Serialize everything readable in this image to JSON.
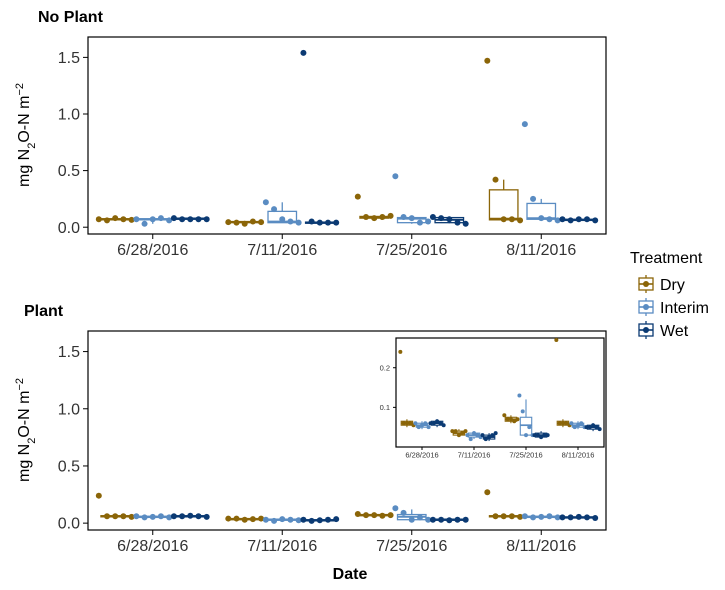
{
  "figure": {
    "xlabel": "Date",
    "ylabel": "mg N2O-N m−2",
    "ylabel_main": "mg N",
    "ylabel_sub": "2",
    "ylabel_rest": "O-N m",
    "ylabel_sup": "−2"
  },
  "legend": {
    "title": "Treatment",
    "items": [
      {
        "label": "Dry",
        "color": "#8B6508"
      },
      {
        "label": "Interim",
        "color": "#5A8CC2"
      },
      {
        "label": "Wet",
        "color": "#0B3A73"
      }
    ]
  },
  "colors": {
    "Dry": "#8B6508",
    "Interim": "#5A8CC2",
    "Wet": "#0B3A73"
  },
  "chart_data": [
    {
      "type": "box",
      "title": "No Plant",
      "categories": [
        "6/28/2016",
        "7/11/2016",
        "7/25/2016",
        "8/11/2016"
      ],
      "xlabel": "",
      "ylabel": "mg N2O-N m-2",
      "ylim": [
        -0.06,
        1.68
      ],
      "yticks": [
        0.0,
        0.5,
        1.0,
        1.5
      ],
      "series": [
        {
          "name": "Dry",
          "boxes": [
            {
              "q1": 0.065,
              "median": 0.07,
              "q3": 0.075,
              "whisker_low": 0.06,
              "whisker_high": 0.085,
              "points": [
                0.07,
                0.06,
                0.08,
                0.07,
                0.065
              ]
            },
            {
              "q1": 0.04,
              "median": 0.045,
              "q3": 0.05,
              "whisker_low": 0.035,
              "whisker_high": 0.055,
              "points": [
                0.045,
                0.04,
                0.03,
                0.05,
                0.045
              ]
            },
            {
              "q1": 0.08,
              "median": 0.09,
              "q3": 0.095,
              "whisker_low": 0.075,
              "whisker_high": 0.1,
              "points": [
                0.27,
                0.09,
                0.08,
                0.09,
                0.1
              ]
            },
            {
              "q1": 0.065,
              "median": 0.075,
              "q3": 0.33,
              "whisker_low": 0.06,
              "whisker_high": 0.42,
              "points": [
                1.47,
                0.42,
                0.07,
                0.07,
                0.06
              ]
            }
          ]
        },
        {
          "name": "Interim",
          "boxes": [
            {
              "q1": 0.065,
              "median": 0.07,
              "q3": 0.075,
              "whisker_low": 0.03,
              "whisker_high": 0.08,
              "points": [
                0.07,
                0.03,
                0.07,
                0.08,
                0.06
              ]
            },
            {
              "q1": 0.04,
              "median": 0.05,
              "q3": 0.14,
              "whisker_low": 0.04,
              "whisker_high": 0.22,
              "points": [
                0.22,
                0.16,
                0.07,
                0.05,
                0.04
              ]
            },
            {
              "q1": 0.04,
              "median": 0.075,
              "q3": 0.085,
              "whisker_low": 0.03,
              "whisker_high": 0.09,
              "points": [
                0.45,
                0.09,
                0.08,
                0.04,
                0.05
              ]
            },
            {
              "q1": 0.07,
              "median": 0.08,
              "q3": 0.21,
              "whisker_low": 0.06,
              "whisker_high": 0.25,
              "points": [
                0.91,
                0.25,
                0.08,
                0.07,
                0.06
              ]
            }
          ]
        },
        {
          "name": "Wet",
          "boxes": [
            {
              "q1": 0.07,
              "median": 0.075,
              "q3": 0.08,
              "whisker_low": 0.065,
              "whisker_high": 0.085,
              "points": [
                0.08,
                0.07,
                0.07,
                0.07,
                0.07
              ]
            },
            {
              "q1": 0.035,
              "median": 0.04,
              "q3": 0.045,
              "whisker_low": 0.03,
              "whisker_high": 0.05,
              "points": [
                1.54,
                0.05,
                0.04,
                0.04,
                0.04
              ]
            },
            {
              "q1": 0.04,
              "median": 0.065,
              "q3": 0.085,
              "whisker_low": 0.035,
              "whisker_high": 0.095,
              "points": [
                0.09,
                0.08,
                0.07,
                0.04,
                0.03
              ]
            },
            {
              "q1": 0.06,
              "median": 0.065,
              "q3": 0.07,
              "whisker_low": 0.055,
              "whisker_high": 0.075,
              "points": [
                0.07,
                0.06,
                0.07,
                0.07,
                0.06
              ]
            }
          ]
        }
      ]
    },
    {
      "type": "box",
      "title": "Plant",
      "categories": [
        "6/28/2016",
        "7/11/2016",
        "7/25/2016",
        "8/11/2016"
      ],
      "xlabel": "Date",
      "ylabel": "mg N2O-N m-2",
      "ylim": [
        -0.06,
        1.68
      ],
      "yticks": [
        0.0,
        0.5,
        1.0,
        1.5
      ],
      "series": [
        {
          "name": "Dry",
          "boxes": [
            {
              "q1": 0.055,
              "median": 0.06,
              "q3": 0.065,
              "whisker_low": 0.05,
              "whisker_high": 0.07,
              "points": [
                0.24,
                0.06,
                0.06,
                0.06,
                0.055
              ]
            },
            {
              "q1": 0.03,
              "median": 0.035,
              "q3": 0.04,
              "whisker_low": 0.025,
              "whisker_high": 0.045,
              "points": [
                0.04,
                0.04,
                0.03,
                0.035,
                0.04
              ]
            },
            {
              "q1": 0.065,
              "median": 0.07,
              "q3": 0.075,
              "whisker_low": 0.06,
              "whisker_high": 0.08,
              "points": [
                0.08,
                0.07,
                0.07,
                0.065,
                0.07
              ]
            },
            {
              "q1": 0.055,
              "median": 0.06,
              "q3": 0.065,
              "whisker_low": 0.05,
              "whisker_high": 0.07,
              "points": [
                0.27,
                0.06,
                0.06,
                0.06,
                0.055
              ]
            }
          ]
        },
        {
          "name": "Interim",
          "boxes": [
            {
              "q1": 0.05,
              "median": 0.055,
              "q3": 0.06,
              "whisker_low": 0.045,
              "whisker_high": 0.065,
              "points": [
                0.06,
                0.05,
                0.055,
                0.06,
                0.05
              ]
            },
            {
              "q1": 0.025,
              "median": 0.03,
              "q3": 0.035,
              "whisker_low": 0.02,
              "whisker_high": 0.04,
              "points": [
                0.03,
                0.02,
                0.035,
                0.03,
                0.025
              ]
            },
            {
              "q1": 0.03,
              "median": 0.055,
              "q3": 0.075,
              "whisker_low": 0.025,
              "whisker_high": 0.12,
              "points": [
                0.13,
                0.09,
                0.03,
                0.05,
                0.03
              ]
            },
            {
              "q1": 0.05,
              "median": 0.055,
              "q3": 0.06,
              "whisker_low": 0.045,
              "whisker_high": 0.065,
              "points": [
                0.06,
                0.05,
                0.055,
                0.06,
                0.05
              ]
            }
          ]
        },
        {
          "name": "Wet",
          "boxes": [
            {
              "q1": 0.055,
              "median": 0.06,
              "q3": 0.065,
              "whisker_low": 0.05,
              "whisker_high": 0.07,
              "points": [
                0.06,
                0.06,
                0.065,
                0.06,
                0.055
              ]
            },
            {
              "q1": 0.02,
              "median": 0.025,
              "q3": 0.03,
              "whisker_low": 0.015,
              "whisker_high": 0.035,
              "points": [
                0.03,
                0.02,
                0.025,
                0.03,
                0.035
              ]
            },
            {
              "q1": 0.025,
              "median": 0.03,
              "q3": 0.035,
              "whisker_low": 0.02,
              "whisker_high": 0.04,
              "points": [
                0.03,
                0.03,
                0.025,
                0.03,
                0.03
              ]
            },
            {
              "q1": 0.045,
              "median": 0.05,
              "q3": 0.055,
              "whisker_low": 0.04,
              "whisker_high": 0.06,
              "points": [
                0.05,
                0.05,
                0.055,
                0.05,
                0.045
              ]
            }
          ]
        }
      ],
      "inset": {
        "ylim": [
          0.0,
          0.275
        ],
        "yticks": [
          0.1,
          0.2
        ],
        "categories": [
          "6/28/2016",
          "7/11/2016",
          "7/25/2016",
          "8/11/2016"
        ]
      }
    }
  ]
}
